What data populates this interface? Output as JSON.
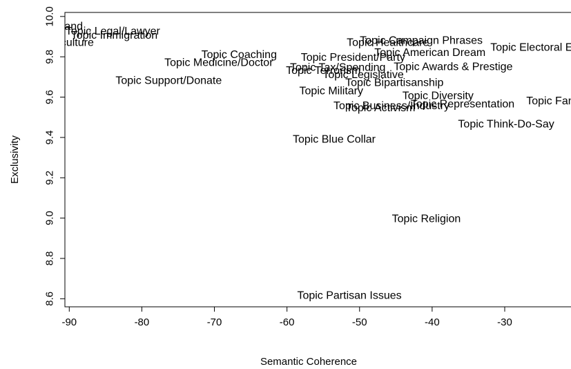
{
  "chart_data": {
    "type": "scatter",
    "title": "",
    "xlabel": "Semantic Coherence",
    "ylabel": "Exclusivity",
    "xlim": [
      -90.6,
      -20.2
    ],
    "ylim": [
      8.56,
      10.02
    ],
    "xticks": [
      -90,
      -80,
      -70,
      -60,
      -50,
      -40,
      -30
    ],
    "yticks": [
      8.6,
      8.8,
      9.0,
      9.2,
      9.4,
      9.6,
      9.8,
      10.0
    ],
    "grid": false,
    "marker": "text labels",
    "points": [
      {
        "label": "Topic Nature/Land",
        "x": -94.3,
        "y": 9.95
      },
      {
        "label": "Topic Legal/Lawyer",
        "x": -84.0,
        "y": 9.925
      },
      {
        "label": "Topic Immigration",
        "x": -83.8,
        "y": 9.905
      },
      {
        "label": "Topic Agriculture",
        "x": -92.2,
        "y": 9.87
      },
      {
        "label": "Topic Coaching",
        "x": -66.6,
        "y": 9.81
      },
      {
        "label": "Topic Medicine/Doctor",
        "x": -69.4,
        "y": 9.77
      },
      {
        "label": "Topic Support/Donate",
        "x": -76.3,
        "y": 9.68
      },
      {
        "label": "Topic Healthcare",
        "x": -46.1,
        "y": 9.87
      },
      {
        "label": "Topic Campaign Phrases",
        "x": -41.5,
        "y": 9.88
      },
      {
        "label": "Topic Electoral Experience",
        "x": -23.0,
        "y": 9.845
      },
      {
        "label": "Topic American Dream",
        "x": -40.3,
        "y": 9.82
      },
      {
        "label": "Topic President/Party",
        "x": -50.9,
        "y": 9.795
      },
      {
        "label": "Topic Awards & Prestige",
        "x": -37.1,
        "y": 9.75
      },
      {
        "label": "Topic Tax/Spending",
        "x": -53.0,
        "y": 9.745
      },
      {
        "label": "Topic Terrorism",
        "x": -55.0,
        "y": 9.73
      },
      {
        "label": "Topic Legislative",
        "x": -49.5,
        "y": 9.71
      },
      {
        "label": "Topic Bipartisanship",
        "x": -45.2,
        "y": 9.67
      },
      {
        "label": "Topic Military",
        "x": -53.9,
        "y": 9.63
      },
      {
        "label": "Topic Diversity",
        "x": -39.2,
        "y": 9.605
      },
      {
        "label": "Topic Family/Education",
        "x": -19.2,
        "y": 9.58
      },
      {
        "label": "Topic Representation",
        "x": -35.8,
        "y": 9.565
      },
      {
        "label": "Topic Business/Industry",
        "x": -45.6,
        "y": 9.555
      },
      {
        "label": "Topic Activism",
        "x": -47.1,
        "y": 9.545
      },
      {
        "label": "Topic Think-Do-Say",
        "x": -29.8,
        "y": 9.465
      },
      {
        "label": "Topic Blue Collar",
        "x": -53.5,
        "y": 9.39
      },
      {
        "label": "Topic Religion",
        "x": -40.8,
        "y": 8.995
      },
      {
        "label": "Topic Partisan Issues",
        "x": -51.4,
        "y": 8.615
      }
    ]
  }
}
